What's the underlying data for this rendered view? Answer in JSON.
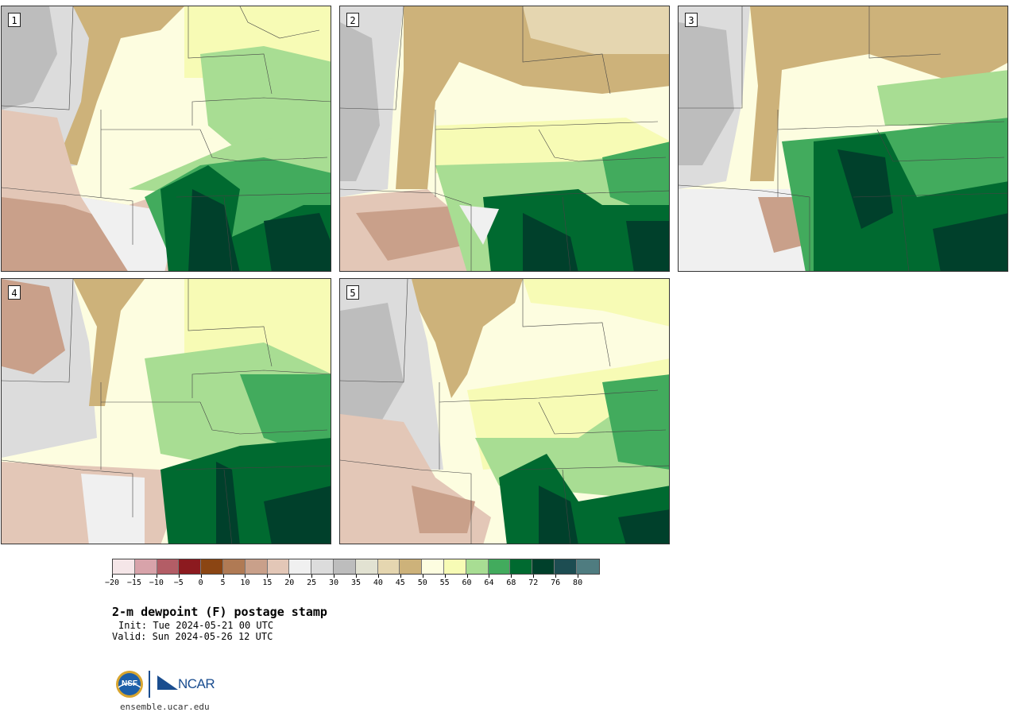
{
  "panels": [
    {
      "label": "1"
    },
    {
      "label": "2"
    },
    {
      "label": "3"
    },
    {
      "label": "4"
    },
    {
      "label": "5"
    }
  ],
  "colorbar": {
    "colors": [
      "#f5e6e8",
      "#d8a3aa",
      "#b35d66",
      "#8c1a1f",
      "#8b4513",
      "#b07a54",
      "#c9a08a",
      "#e3c7b7",
      "#f0f0f0",
      "#dcdcdc",
      "#bdbdbd",
      "#e2e2d2",
      "#e5d6b0",
      "#cdb27a",
      "#fdfde0",
      "#f7fbb5",
      "#a8dd93",
      "#42ab5d",
      "#006a30",
      "#00402b",
      "#1d4d52",
      "#4f7c80"
    ],
    "tick_labels": [
      "−20",
      "−15",
      "−10",
      "−5",
      "0",
      "5",
      "10",
      "15",
      "20",
      "25",
      "30",
      "35",
      "40",
      "45",
      "50",
      "55",
      "60",
      "64",
      "68",
      "72",
      "76",
      "80"
    ]
  },
  "title": "2-m dewpoint (F) postage stamp",
  "init": "Init: Tue 2024-05-21 00 UTC",
  "valid": "Valid: Sun 2024-05-26 12 UTC",
  "logos": {
    "nsf": "NSF",
    "ncar": "NCAR"
  },
  "site": "ensemble.ucar.edu"
}
